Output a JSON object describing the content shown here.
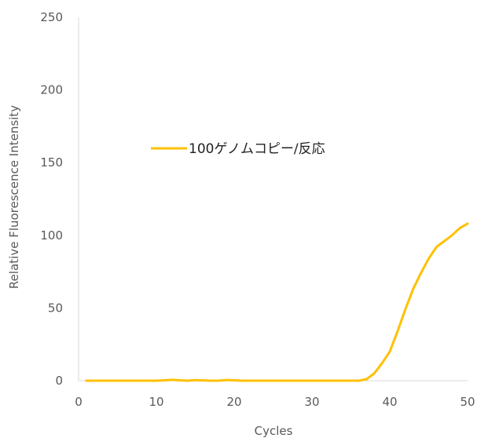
{
  "chart_data": {
    "type": "line",
    "title": "",
    "xlabel": "Cycles",
    "ylabel": "Relative Fluorescence Intensity",
    "xlim": [
      0,
      50
    ],
    "ylim": [
      0,
      250
    ],
    "xticks": [
      0,
      10,
      20,
      30,
      40,
      50
    ],
    "yticks": [
      0,
      50,
      100,
      150,
      200,
      250
    ],
    "grid": false,
    "legend_position": "center-left",
    "series": [
      {
        "name": "100ゲノムコピー/反応",
        "color": "#FFC000",
        "x": [
          1,
          2,
          3,
          4,
          5,
          6,
          7,
          8,
          9,
          10,
          11,
          12,
          13,
          14,
          15,
          16,
          17,
          18,
          19,
          20,
          21,
          22,
          23,
          24,
          25,
          26,
          27,
          28,
          29,
          30,
          31,
          32,
          33,
          34,
          35,
          36,
          37,
          38,
          39,
          40,
          41,
          42,
          43,
          44,
          45,
          46,
          47,
          48,
          49,
          50
        ],
        "y": [
          0,
          0,
          0,
          0,
          0,
          0,
          0,
          0,
          0,
          0,
          0.3,
          0.6,
          0.3,
          0,
          0.4,
          0.2,
          0,
          0,
          0.5,
          0.3,
          0,
          0,
          0,
          0,
          0,
          0,
          0,
          0,
          0,
          0,
          0,
          0,
          0,
          0,
          0,
          0,
          1,
          5,
          12,
          20,
          34,
          49,
          63,
          74,
          84,
          92,
          96,
          100,
          105,
          108
        ]
      }
    ]
  }
}
